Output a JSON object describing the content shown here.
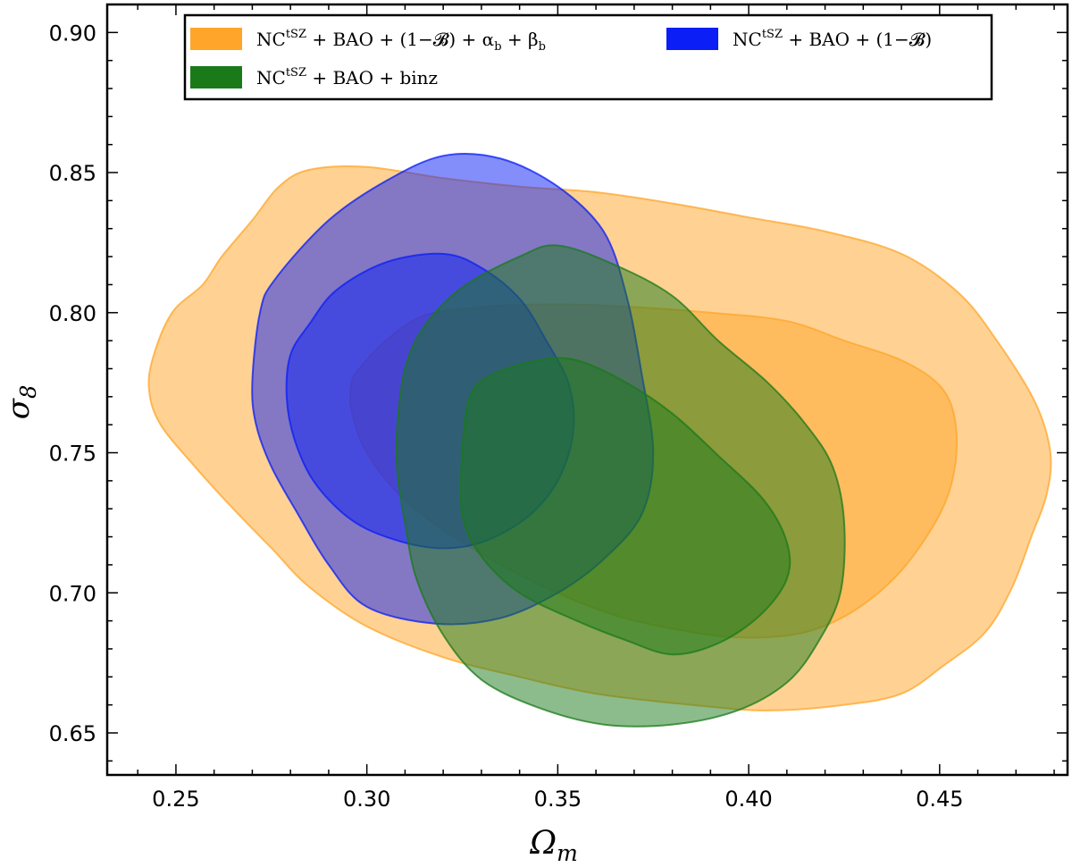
{
  "chart_data": {
    "type": "contour",
    "xlabel": "Ω_m",
    "ylabel": "σ_8",
    "xlim": [
      0.232,
      0.4835
    ],
    "ylim": [
      0.635,
      0.91
    ],
    "xticks": [
      0.25,
      0.3,
      0.35,
      0.4,
      0.45
    ],
    "yticks": [
      0.65,
      0.7,
      0.75,
      0.8,
      0.85,
      0.9
    ],
    "grid": false,
    "legend_position": "top",
    "series": [
      {
        "name": "NC^tSZ + BAO + (1−B) + α_b + β_b",
        "color": "#ffa52a",
        "outer": [
          [
            0.244,
            0.784
          ],
          [
            0.249,
            0.8
          ],
          [
            0.257,
            0.81
          ],
          [
            0.262,
            0.82
          ],
          [
            0.27,
            0.833
          ],
          [
            0.277,
            0.845
          ],
          [
            0.285,
            0.851
          ],
          [
            0.3,
            0.852
          ],
          [
            0.32,
            0.848
          ],
          [
            0.34,
            0.845
          ],
          [
            0.36,
            0.843
          ],
          [
            0.38,
            0.839
          ],
          [
            0.4,
            0.834
          ],
          [
            0.42,
            0.829
          ],
          [
            0.44,
            0.821
          ],
          [
            0.455,
            0.807
          ],
          [
            0.465,
            0.79
          ],
          [
            0.475,
            0.768
          ],
          [
            0.479,
            0.75
          ],
          [
            0.478,
            0.735
          ],
          [
            0.474,
            0.72
          ],
          [
            0.469,
            0.702
          ],
          [
            0.462,
            0.686
          ],
          [
            0.451,
            0.674
          ],
          [
            0.44,
            0.664
          ],
          [
            0.425,
            0.66
          ],
          [
            0.405,
            0.658
          ],
          [
            0.385,
            0.66
          ],
          [
            0.36,
            0.664
          ],
          [
            0.34,
            0.67
          ],
          [
            0.32,
            0.677
          ],
          [
            0.3,
            0.688
          ],
          [
            0.285,
            0.702
          ],
          [
            0.275,
            0.716
          ],
          [
            0.265,
            0.73
          ],
          [
            0.255,
            0.745
          ],
          [
            0.246,
            0.76
          ],
          [
            0.243,
            0.772
          ]
        ],
        "inner": [
          [
            0.296,
            0.775
          ],
          [
            0.298,
            0.78
          ],
          [
            0.305,
            0.79
          ],
          [
            0.315,
            0.799
          ],
          [
            0.33,
            0.802
          ],
          [
            0.35,
            0.803
          ],
          [
            0.37,
            0.802
          ],
          [
            0.39,
            0.8
          ],
          [
            0.41,
            0.797
          ],
          [
            0.425,
            0.79
          ],
          [
            0.44,
            0.783
          ],
          [
            0.45,
            0.774
          ],
          [
            0.454,
            0.762
          ],
          [
            0.454,
            0.745
          ],
          [
            0.45,
            0.728
          ],
          [
            0.44,
            0.708
          ],
          [
            0.428,
            0.694
          ],
          [
            0.415,
            0.686
          ],
          [
            0.4,
            0.684
          ],
          [
            0.385,
            0.686
          ],
          [
            0.365,
            0.692
          ],
          [
            0.345,
            0.703
          ],
          [
            0.325,
            0.718
          ],
          [
            0.31,
            0.733
          ],
          [
            0.3,
            0.75
          ],
          [
            0.296,
            0.765
          ]
        ]
      },
      {
        "name": "NC^tSZ + BAO + (1−B)",
        "color": "#0a1ef5",
        "outer": [
          [
            0.27,
            0.775
          ],
          [
            0.272,
            0.8
          ],
          [
            0.276,
            0.812
          ],
          [
            0.29,
            0.833
          ],
          [
            0.305,
            0.847
          ],
          [
            0.32,
            0.856
          ],
          [
            0.335,
            0.855
          ],
          [
            0.35,
            0.845
          ],
          [
            0.362,
            0.829
          ],
          [
            0.368,
            0.806
          ],
          [
            0.372,
            0.778
          ],
          [
            0.375,
            0.75
          ],
          [
            0.372,
            0.728
          ],
          [
            0.362,
            0.712
          ],
          [
            0.35,
            0.7
          ],
          [
            0.335,
            0.691
          ],
          [
            0.318,
            0.689
          ],
          [
            0.3,
            0.695
          ],
          [
            0.29,
            0.71
          ],
          [
            0.282,
            0.728
          ],
          [
            0.275,
            0.745
          ],
          [
            0.271,
            0.76
          ]
        ],
        "inner": [
          [
            0.279,
            0.77
          ],
          [
            0.28,
            0.785
          ],
          [
            0.285,
            0.796
          ],
          [
            0.292,
            0.808
          ],
          [
            0.305,
            0.818
          ],
          [
            0.32,
            0.821
          ],
          [
            0.33,
            0.816
          ],
          [
            0.34,
            0.805
          ],
          [
            0.347,
            0.79
          ],
          [
            0.353,
            0.774
          ],
          [
            0.354,
            0.757
          ],
          [
            0.35,
            0.74
          ],
          [
            0.342,
            0.727
          ],
          [
            0.33,
            0.718
          ],
          [
            0.318,
            0.716
          ],
          [
            0.305,
            0.72
          ],
          [
            0.295,
            0.727
          ],
          [
            0.286,
            0.74
          ],
          [
            0.281,
            0.755
          ]
        ]
      },
      {
        "name": "NC^tSZ + BAO + binz",
        "color": "#1a7a1a",
        "outer": [
          [
            0.308,
            0.76
          ],
          [
            0.31,
            0.78
          ],
          [
            0.315,
            0.795
          ],
          [
            0.325,
            0.809
          ],
          [
            0.34,
            0.82
          ],
          [
            0.35,
            0.824
          ],
          [
            0.365,
            0.817
          ],
          [
            0.38,
            0.806
          ],
          [
            0.392,
            0.79
          ],
          [
            0.405,
            0.775
          ],
          [
            0.415,
            0.76
          ],
          [
            0.422,
            0.745
          ],
          [
            0.425,
            0.725
          ],
          [
            0.424,
            0.7
          ],
          [
            0.418,
            0.682
          ],
          [
            0.41,
            0.668
          ],
          [
            0.397,
            0.658
          ],
          [
            0.38,
            0.653
          ],
          [
            0.362,
            0.653
          ],
          [
            0.345,
            0.659
          ],
          [
            0.33,
            0.669
          ],
          [
            0.32,
            0.685
          ],
          [
            0.313,
            0.705
          ],
          [
            0.31,
            0.725
          ],
          [
            0.308,
            0.743
          ]
        ],
        "inner": [
          [
            0.325,
            0.75
          ],
          [
            0.327,
            0.77
          ],
          [
            0.333,
            0.778
          ],
          [
            0.345,
            0.783
          ],
          [
            0.355,
            0.783
          ],
          [
            0.368,
            0.775
          ],
          [
            0.38,
            0.764
          ],
          [
            0.392,
            0.749
          ],
          [
            0.404,
            0.733
          ],
          [
            0.41,
            0.718
          ],
          [
            0.41,
            0.705
          ],
          [
            0.403,
            0.692
          ],
          [
            0.392,
            0.682
          ],
          [
            0.38,
            0.678
          ],
          [
            0.368,
            0.683
          ],
          [
            0.355,
            0.69
          ],
          [
            0.34,
            0.7
          ],
          [
            0.33,
            0.713
          ],
          [
            0.325,
            0.728
          ]
        ]
      }
    ]
  },
  "legend": {
    "items": [
      {
        "key": "orange",
        "base": "NC",
        "sup": "tSZ",
        "tail": " + BAO + (1−𝓑) + α",
        "sub1": "b",
        "tail2": " + β",
        "sub2": "b"
      },
      {
        "key": "blue",
        "base": "NC",
        "sup": "tSZ",
        "tail": " + BAO + (1−𝓑)"
      },
      {
        "key": "green",
        "base": "NC",
        "sup": "tSZ",
        "tail": " + BAO + binz"
      }
    ]
  },
  "axes": {
    "x_main": "Ω",
    "x_sub": "m",
    "y_main": "σ",
    "y_sub": "8",
    "xtick_labels": [
      "0.25",
      "0.30",
      "0.35",
      "0.40",
      "0.45"
    ],
    "ytick_labels": [
      "0.65",
      "0.70",
      "0.75",
      "0.80",
      "0.85",
      "0.90"
    ]
  }
}
